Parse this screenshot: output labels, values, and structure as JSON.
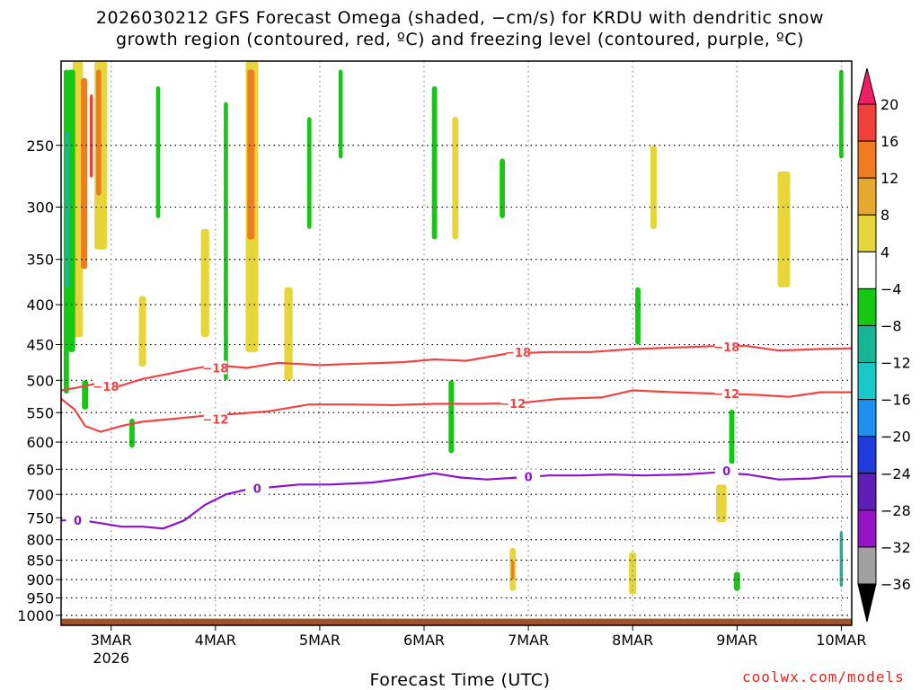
{
  "title": {
    "line1": "2026030212 GFS Forecast Omega (shaded, −cm/s) for KRDU with dendritic snow",
    "line2": "growth region (contoured, red, ºC) and freezing level (contoured, purple, ºC)"
  },
  "credit": "coolwx.com/models",
  "chart_data": {
    "type": "heatmap",
    "xlabel": "Forecast Time (UTC)",
    "ylabel": "",
    "x_ticks": [
      {
        "day": 3,
        "label": "3MAR",
        "sub": "2026"
      },
      {
        "day": 4,
        "label": "4MAR",
        "sub": ""
      },
      {
        "day": 5,
        "label": "5MAR",
        "sub": ""
      },
      {
        "day": 6,
        "label": "6MAR",
        "sub": ""
      },
      {
        "day": 7,
        "label": "7MAR",
        "sub": ""
      },
      {
        "day": 8,
        "label": "8MAR",
        "sub": ""
      },
      {
        "day": 9,
        "label": "9MAR",
        "sub": ""
      },
      {
        "day": 10,
        "label": "10MAR",
        "sub": ""
      }
    ],
    "xlim_days": [
      2.52,
      10.1
    ],
    "y_ticks": [
      250,
      300,
      350,
      400,
      450,
      500,
      550,
      600,
      650,
      700,
      750,
      800,
      850,
      900,
      950,
      1000
    ],
    "ylim_hPa": [
      195,
      1030
    ],
    "y_scale": "log",
    "colorbar": {
      "labels": [
        "20",
        "16",
        "12",
        "8",
        "4",
        "−4",
        "−8",
        "−12",
        "−16",
        "−20",
        "−24",
        "−28",
        "−32",
        "−36"
      ],
      "colors": [
        "#ee1f64",
        "#f0403a",
        "#ee7d22",
        "#e7a830",
        "#e7d63a",
        "#ffffff",
        "#14c814",
        "#18b496",
        "#19c8c8",
        "#1e90f0",
        "#1e3cdc",
        "#5f1eb4",
        "#9614c8",
        "#a0a0a0"
      ]
    },
    "contours": [
      {
        "label": "−18",
        "color": "#f04444",
        "label_at": [
          [
            2.95,
            509
          ],
          [
            4.0,
            482
          ],
          [
            6.9,
            460
          ],
          [
            8.9,
            453
          ]
        ],
        "points": [
          [
            2.52,
            515
          ],
          [
            2.7,
            510
          ],
          [
            2.85,
            505
          ],
          [
            3.05,
            510
          ],
          [
            3.3,
            498
          ],
          [
            3.5,
            492
          ],
          [
            3.8,
            483
          ],
          [
            4.0,
            478
          ],
          [
            4.3,
            482
          ],
          [
            4.6,
            475
          ],
          [
            5.0,
            478
          ],
          [
            5.4,
            476
          ],
          [
            5.8,
            474
          ],
          [
            6.1,
            470
          ],
          [
            6.4,
            472
          ],
          [
            6.8,
            462
          ],
          [
            7.2,
            460
          ],
          [
            7.6,
            460
          ],
          [
            8.0,
            456
          ],
          [
            8.4,
            454
          ],
          [
            8.8,
            452
          ],
          [
            9.1,
            452
          ],
          [
            9.4,
            458
          ],
          [
            9.8,
            456
          ],
          [
            10.1,
            455
          ]
        ]
      },
      {
        "label": "−12",
        "color": "#f04444",
        "label_at": [
          [
            4.0,
            561
          ],
          [
            6.85,
            535
          ],
          [
            8.9,
            520
          ]
        ],
        "points": [
          [
            2.52,
            528
          ],
          [
            2.65,
            545
          ],
          [
            2.75,
            572
          ],
          [
            2.9,
            582
          ],
          [
            3.1,
            572
          ],
          [
            3.3,
            565
          ],
          [
            3.6,
            560
          ],
          [
            3.9,
            555
          ],
          [
            4.2,
            552
          ],
          [
            4.5,
            548
          ],
          [
            4.9,
            537
          ],
          [
            5.3,
            537
          ],
          [
            5.7,
            538
          ],
          [
            6.1,
            536
          ],
          [
            6.5,
            536
          ],
          [
            6.9,
            535
          ],
          [
            7.3,
            528
          ],
          [
            7.7,
            526
          ],
          [
            8.0,
            515
          ],
          [
            8.4,
            518
          ],
          [
            8.8,
            520
          ],
          [
            9.2,
            522
          ],
          [
            9.5,
            525
          ],
          [
            9.8,
            518
          ],
          [
            10.1,
            518
          ]
        ]
      },
      {
        "label": "0",
        "color": "#8c14c8",
        "label_at": [
          [
            2.68,
            755
          ],
          [
            4.4,
            688
          ],
          [
            7.0,
            664
          ],
          [
            8.9,
            653
          ]
        ],
        "points": [
          [
            2.52,
            756
          ],
          [
            2.7,
            755
          ],
          [
            2.9,
            762
          ],
          [
            3.1,
            770
          ],
          [
            3.3,
            770
          ],
          [
            3.5,
            774
          ],
          [
            3.7,
            756
          ],
          [
            3.9,
            722
          ],
          [
            4.1,
            700
          ],
          [
            4.3,
            690
          ],
          [
            4.5,
            686
          ],
          [
            4.8,
            680
          ],
          [
            5.1,
            680
          ],
          [
            5.5,
            676
          ],
          [
            5.8,
            668
          ],
          [
            6.1,
            658
          ],
          [
            6.35,
            666
          ],
          [
            6.6,
            670
          ],
          [
            6.9,
            666
          ],
          [
            7.2,
            662
          ],
          [
            7.5,
            662
          ],
          [
            7.8,
            660
          ],
          [
            8.1,
            662
          ],
          [
            8.5,
            660
          ],
          [
            8.8,
            656
          ],
          [
            9.1,
            660
          ],
          [
            9.4,
            670
          ],
          [
            9.7,
            668
          ],
          [
            9.9,
            664
          ],
          [
            10.1,
            664
          ]
        ]
      }
    ],
    "shaded_regions": [
      {
        "color": "#14c814",
        "day": 2.57,
        "p_top": 200,
        "p_bot": 520,
        "w": 0.05
      },
      {
        "color": "#e7d63a",
        "day": 2.68,
        "p_top": 195,
        "p_bot": 440,
        "w": 0.1
      },
      {
        "color": "#ee7d22",
        "day": 2.74,
        "p_top": 205,
        "p_bot": 360,
        "w": 0.06
      },
      {
        "color": "#14c814",
        "day": 2.62,
        "p_top": 200,
        "p_bot": 460,
        "w": 0.07
      },
      {
        "color": "#18b496",
        "day": 2.58,
        "p_top": 240,
        "p_bot": 380,
        "w": 0.04
      },
      {
        "color": "#e7d63a",
        "day": 2.9,
        "p_top": 195,
        "p_bot": 340,
        "w": 0.12
      },
      {
        "color": "#ee7d22",
        "day": 2.88,
        "p_top": 200,
        "p_bot": 290,
        "w": 0.05
      },
      {
        "color": "#f0403a",
        "day": 2.81,
        "p_top": 215,
        "p_bot": 275,
        "w": 0.03
      },
      {
        "color": "#14c814",
        "day": 2.75,
        "p_top": 500,
        "p_bot": 545,
        "w": 0.06
      },
      {
        "color": "#14c814",
        "day": 3.2,
        "p_top": 560,
        "p_bot": 610,
        "w": 0.05
      },
      {
        "color": "#e7d63a",
        "day": 3.3,
        "p_top": 390,
        "p_bot": 480,
        "w": 0.07
      },
      {
        "color": "#14c814",
        "day": 3.45,
        "p_top": 210,
        "p_bot": 310,
        "w": 0.04
      },
      {
        "color": "#e7d63a",
        "day": 3.9,
        "p_top": 320,
        "p_bot": 440,
        "w": 0.08
      },
      {
        "color": "#14c814",
        "day": 4.1,
        "p_top": 220,
        "p_bot": 500,
        "w": 0.04
      },
      {
        "color": "#e7d63a",
        "day": 4.35,
        "p_top": 195,
        "p_bot": 460,
        "w": 0.12
      },
      {
        "color": "#ee7d22",
        "day": 4.34,
        "p_top": 200,
        "p_bot": 330,
        "w": 0.07
      },
      {
        "color": "#e7d63a",
        "day": 4.7,
        "p_top": 380,
        "p_bot": 500,
        "w": 0.08
      },
      {
        "color": "#14c814",
        "day": 4.9,
        "p_top": 230,
        "p_bot": 320,
        "w": 0.04
      },
      {
        "color": "#14c814",
        "day": 5.2,
        "p_top": 200,
        "p_bot": 260,
        "w": 0.04
      },
      {
        "color": "#14c814",
        "day": 6.1,
        "p_top": 210,
        "p_bot": 330,
        "w": 0.05
      },
      {
        "color": "#e7d63a",
        "day": 6.3,
        "p_top": 230,
        "p_bot": 330,
        "w": 0.06
      },
      {
        "color": "#14c814",
        "day": 6.26,
        "p_top": 500,
        "p_bot": 620,
        "w": 0.05
      },
      {
        "color": "#14c814",
        "day": 6.75,
        "p_top": 260,
        "p_bot": 310,
        "w": 0.05
      },
      {
        "color": "#e7d63a",
        "day": 6.85,
        "p_top": 820,
        "p_bot": 930,
        "w": 0.06
      },
      {
        "color": "#ee7d22",
        "day": 6.85,
        "p_top": 850,
        "p_bot": 900,
        "w": 0.03
      },
      {
        "color": "#14c814",
        "day": 8.05,
        "p_top": 380,
        "p_bot": 450,
        "w": 0.05
      },
      {
        "color": "#e7d63a",
        "day": 8.2,
        "p_top": 250,
        "p_bot": 320,
        "w": 0.06
      },
      {
        "color": "#e7d63a",
        "day": 8.85,
        "p_top": 680,
        "p_bot": 760,
        "w": 0.1
      },
      {
        "color": "#14c814",
        "day": 8.95,
        "p_top": 545,
        "p_bot": 640,
        "w": 0.05
      },
      {
        "color": "#e7d63a",
        "day": 9.45,
        "p_top": 270,
        "p_bot": 380,
        "w": 0.12
      },
      {
        "color": "#14c814",
        "day": 9.0,
        "p_top": 880,
        "p_bot": 930,
        "w": 0.06
      },
      {
        "color": "#14c814",
        "day": 10.0,
        "p_top": 200,
        "p_bot": 260,
        "w": 0.04
      },
      {
        "color": "#18b496",
        "day": 10.0,
        "p_top": 780,
        "p_bot": 920,
        "w": 0.03
      },
      {
        "color": "#ee7d22",
        "day": 8.0,
        "p_top": 860,
        "p_bot": 900,
        "w": 0.05
      },
      {
        "color": "#e7d63a",
        "day": 8.0,
        "p_top": 830,
        "p_bot": 940,
        "w": 0.07
      }
    ],
    "ground": {
      "color": "#a0522d",
      "p_top": 1010
    }
  }
}
